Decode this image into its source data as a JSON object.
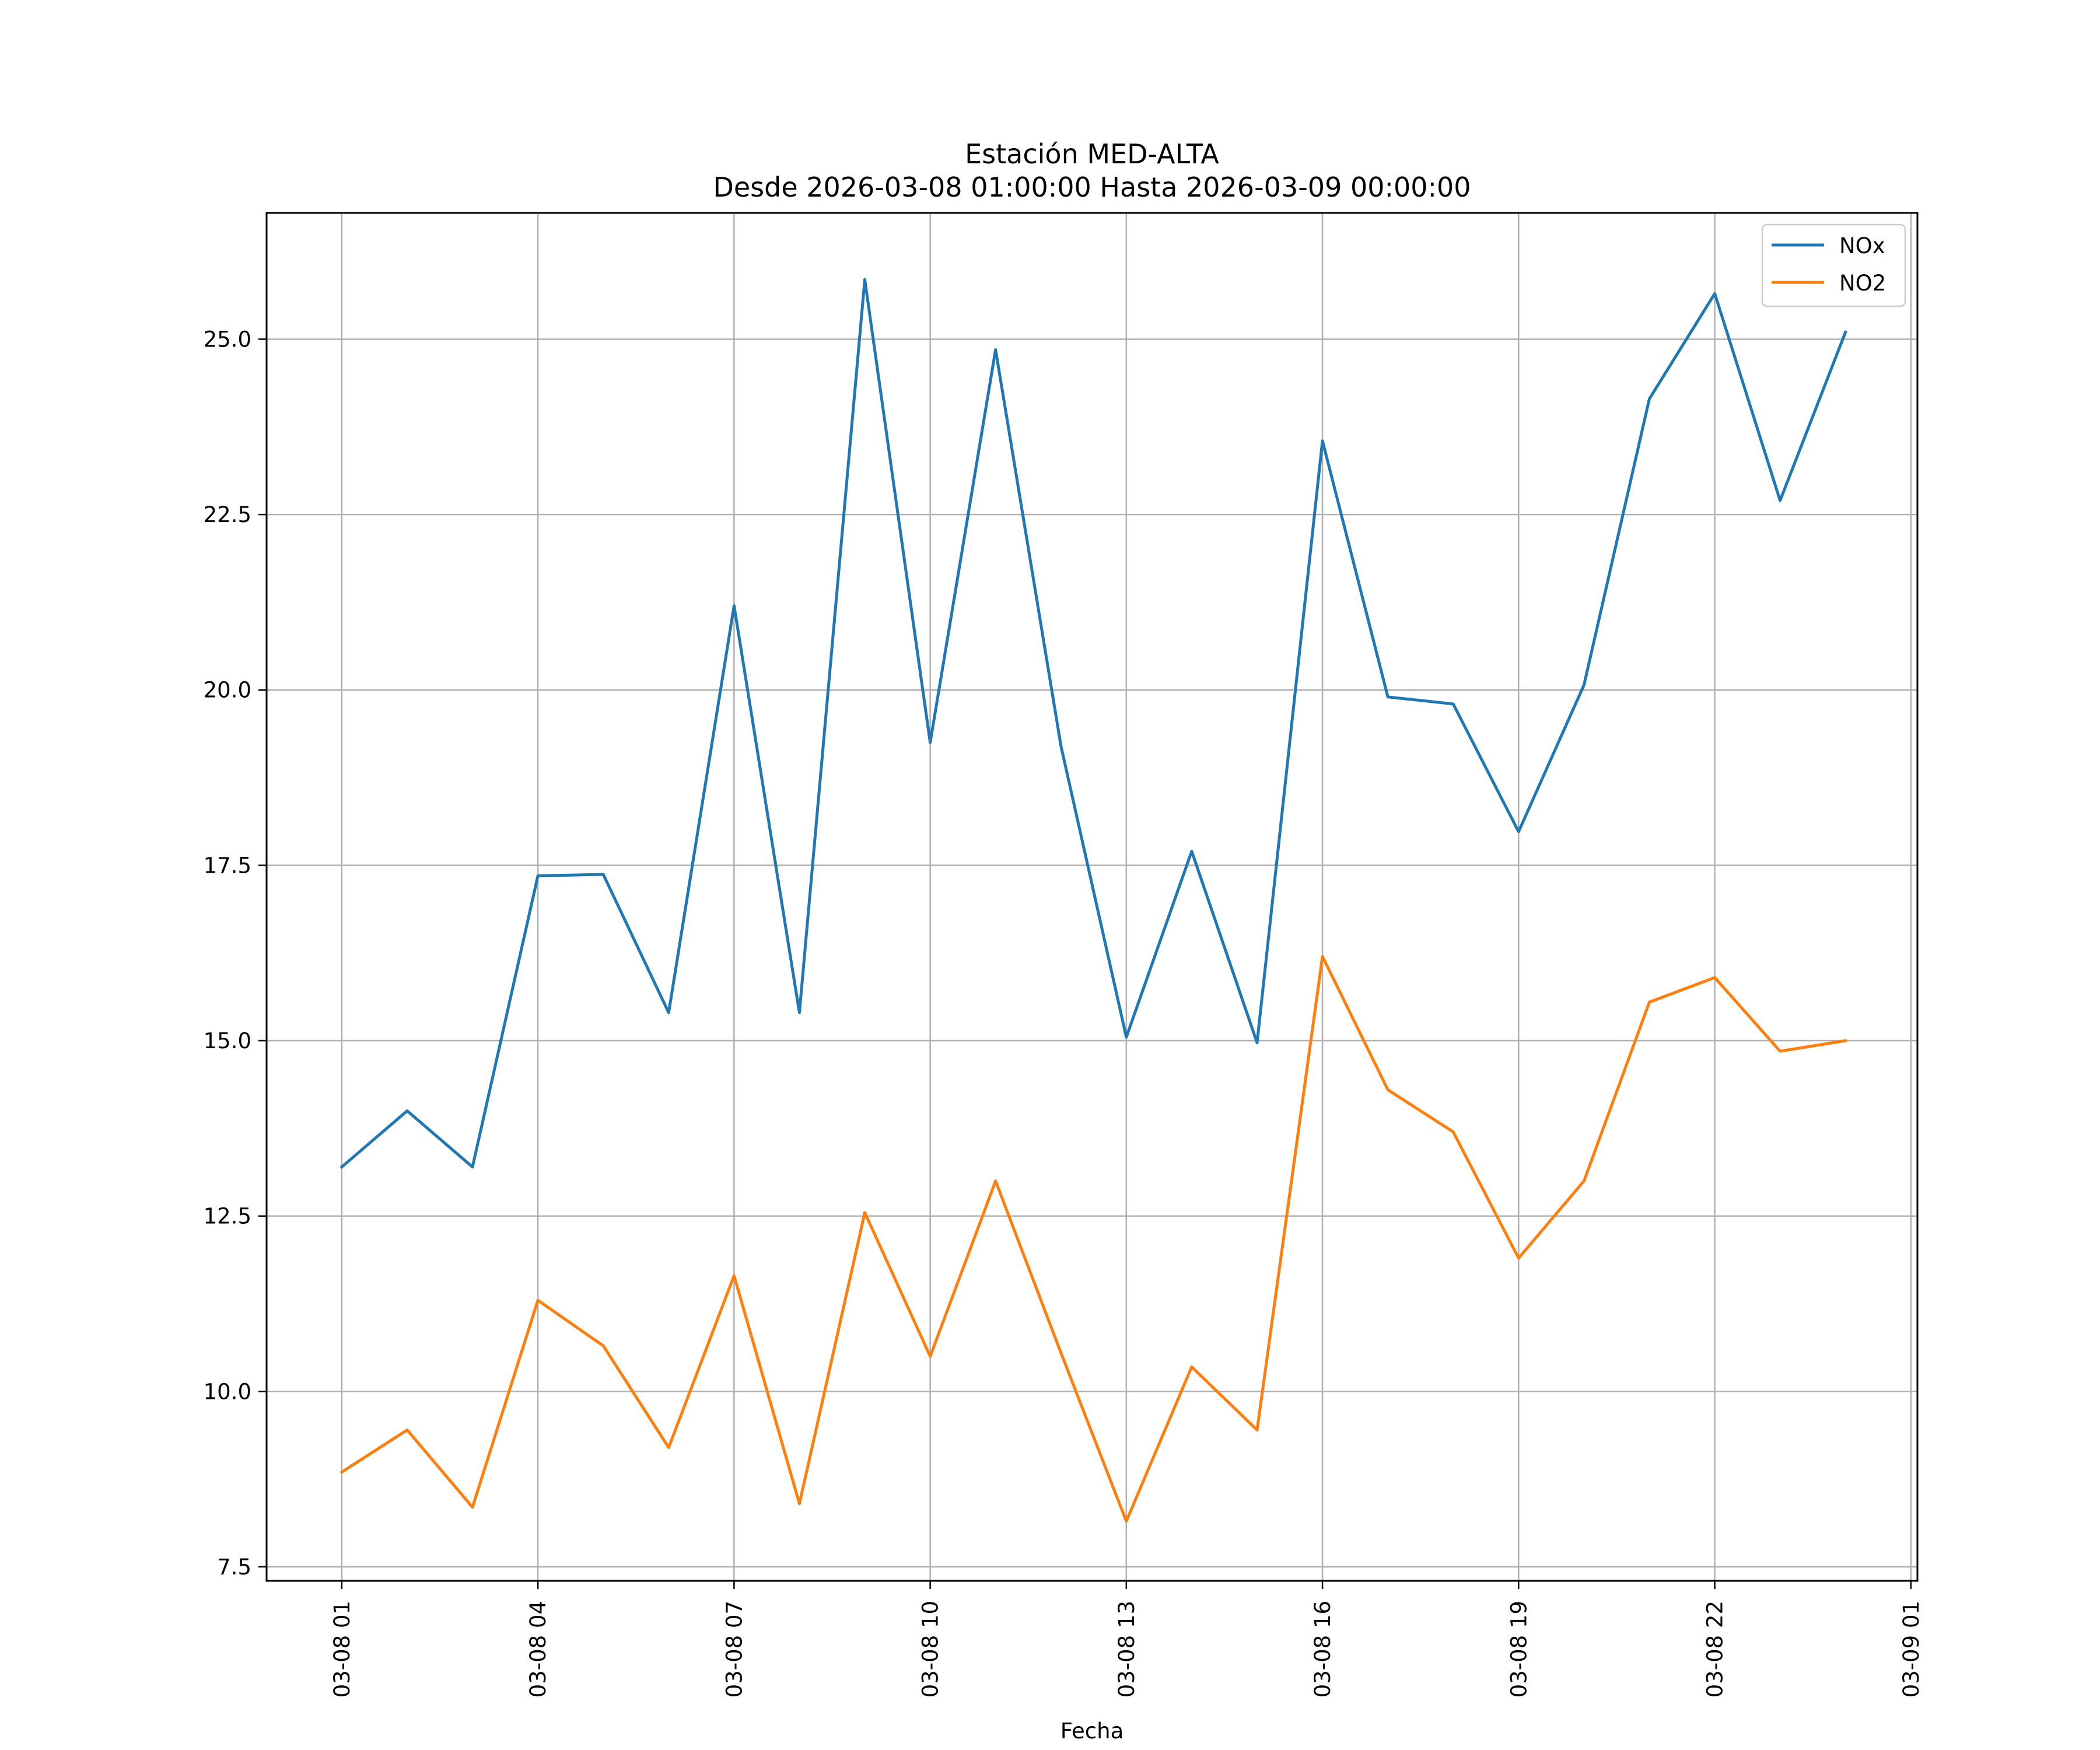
{
  "chart_data": {
    "type": "line",
    "title": "Estación MED-ALTA",
    "subtitle": "Desde 2026-03-08 01:00:00 Hasta 2026-03-09 00:00:00",
    "xlabel": "Fecha",
    "ylabel": "",
    "x_hours": [
      1,
      2,
      3,
      4,
      5,
      6,
      7,
      8,
      9,
      10,
      11,
      12,
      13,
      14,
      15,
      16,
      17,
      18,
      19,
      20,
      21,
      22,
      23,
      24
    ],
    "xlim": [
      -0.15,
      25.1
    ],
    "ylim": [
      7.3,
      26.8
    ],
    "x_ticks": [
      1,
      4,
      7,
      10,
      13,
      16,
      19,
      22,
      25
    ],
    "x_tick_labels": [
      "03-08 01",
      "03-08 04",
      "03-08 07",
      "03-08 10",
      "03-08 13",
      "03-08 16",
      "03-08 19",
      "03-08 22",
      "03-09 01"
    ],
    "y_ticks": [
      7.5,
      10.0,
      12.5,
      15.0,
      17.5,
      20.0,
      22.5,
      25.0
    ],
    "y_tick_labels": [
      "7.5",
      "10.0",
      "12.5",
      "15.0",
      "17.5",
      "20.0",
      "22.5",
      "25.0"
    ],
    "grid": true,
    "legend_position": "top-right",
    "series": [
      {
        "name": "NOx",
        "color": "#1f77b4",
        "values": [
          13.2,
          14.0,
          13.2,
          17.35,
          17.37,
          15.4,
          21.2,
          15.4,
          25.85,
          19.25,
          24.85,
          19.2,
          15.05,
          17.7,
          14.97,
          23.55,
          19.9,
          19.8,
          17.98,
          20.07,
          24.15,
          25.65,
          22.7,
          25.1
        ]
      },
      {
        "name": "NO2",
        "color": "#ff7f0e",
        "values": [
          8.85,
          9.45,
          8.35,
          11.3,
          10.65,
          9.2,
          11.65,
          8.4,
          12.55,
          10.5,
          13.0,
          10.55,
          8.15,
          10.35,
          9.45,
          16.2,
          14.3,
          13.7,
          11.9,
          13.0,
          15.55,
          15.9,
          14.85,
          15.0
        ]
      }
    ]
  }
}
